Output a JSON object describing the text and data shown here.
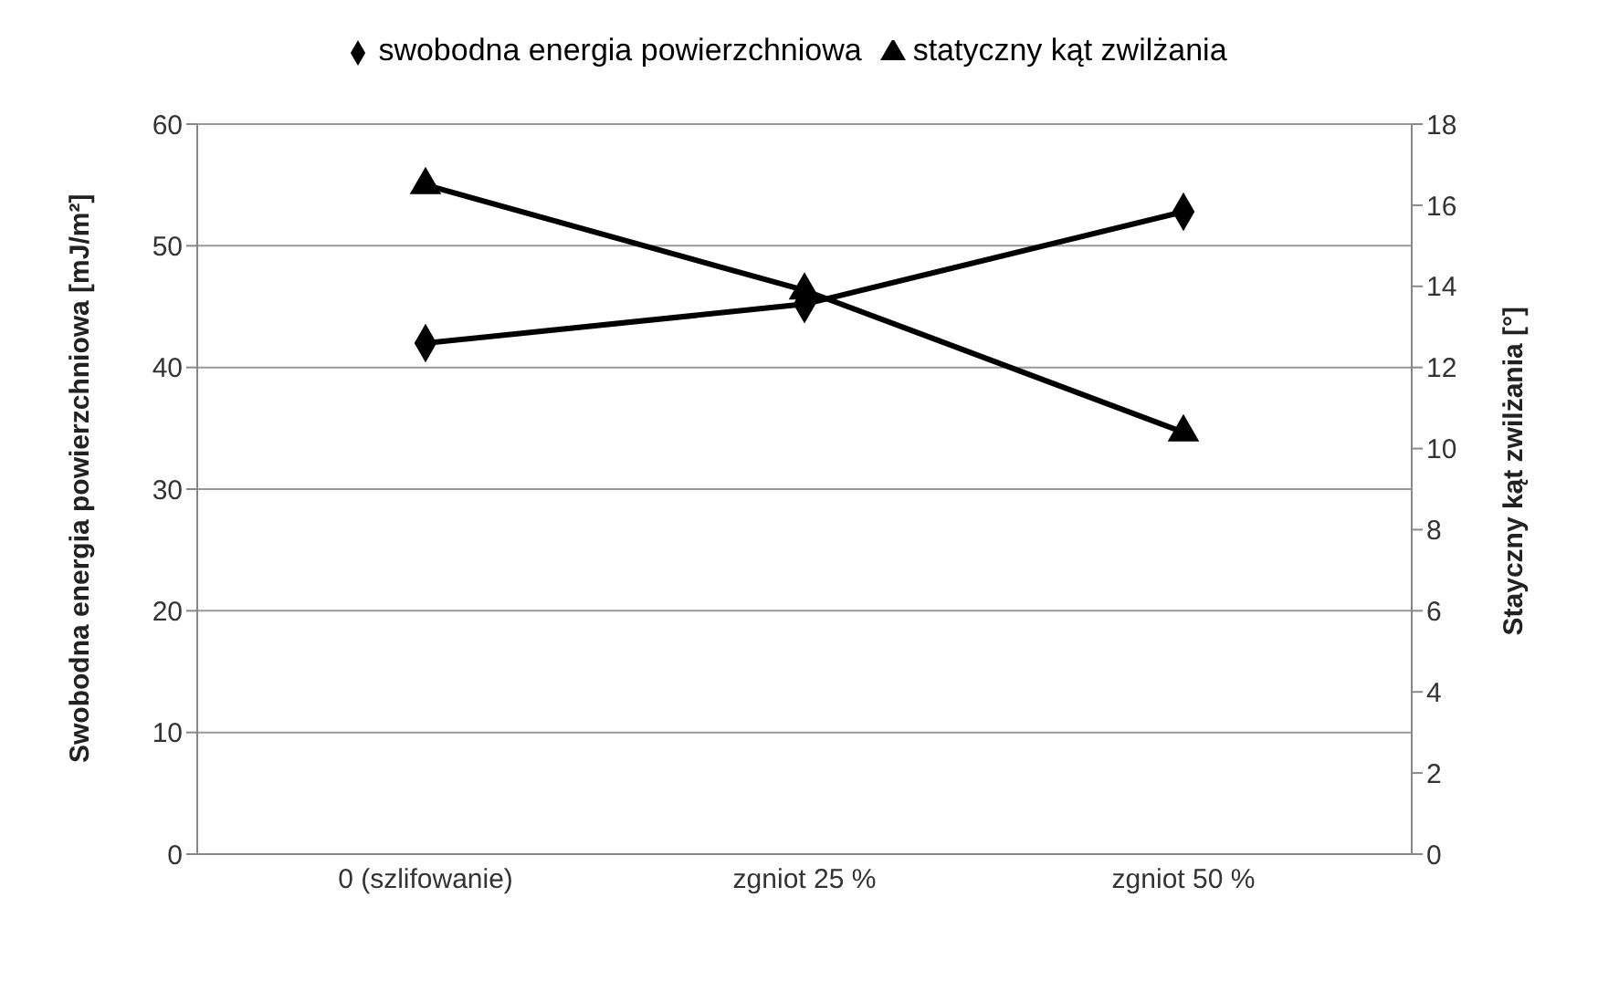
{
  "chart_data": {
    "type": "line",
    "categories": [
      "0 (szlifowanie)",
      "zgniot 25 %",
      "zgniot 50 %"
    ],
    "series": [
      {
        "name": "swobodna energia powierzchniowa",
        "color": "#000000",
        "values": [
          42,
          45.2,
          52.8
        ],
        "marker": "diamond"
      },
      {
        "name": "statyczny kąt zwilżania",
        "color": "#000000",
        "values": [
          16.5,
          13.9,
          10.4
        ],
        "marker": "triangle",
        "axis": "y2"
      }
    ],
    "ylabel": "Swobodna energia powierzchniowa [mJ/m²]",
    "y2label": "Stayczny kąt zwilżania [°]",
    "ylim": [
      0,
      60
    ],
    "yticks": [
      0,
      10,
      20,
      30,
      40,
      50,
      60
    ],
    "y2lim": [
      0,
      18
    ],
    "y2ticks": [
      0,
      2,
      4,
      6,
      8,
      10,
      12,
      14,
      16,
      18
    ],
    "grid": "y",
    "legend": "top"
  }
}
